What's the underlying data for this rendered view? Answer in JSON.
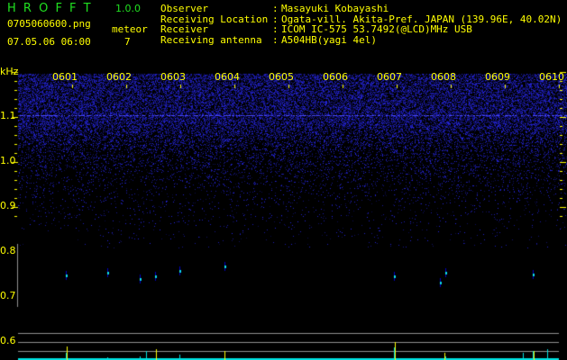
{
  "app": {
    "name": "H R O F F T",
    "version": "1.0.0"
  },
  "file": {
    "name": "0705060600.png",
    "datetime": "07.05.06 06:00"
  },
  "meteor": {
    "label": "meteor",
    "count": "7"
  },
  "info": [
    {
      "label": "Observer",
      "value": "Masayuki Kobayashi"
    },
    {
      "label": "Receiving Location",
      "value": "Ogata-vill. Akita-Pref. JAPAN (139.96E, 40.02N)"
    },
    {
      "label": "Receiver",
      "value": "ICOM IC-575 53.7492(@LCD)MHz USB"
    },
    {
      "label": "Receiving antenna",
      "value": "A504HB(yagi 4el)"
    }
  ],
  "axis": {
    "unit": "kHz",
    "y_ticks": [
      "1.1",
      "1.0",
      "0.9",
      "0.8",
      "0.7",
      "0.6"
    ],
    "x_ticks": [
      "0601",
      "0602",
      "0603",
      "0604",
      "0605",
      "0606",
      "0607",
      "0608",
      "0609",
      "0610"
    ]
  },
  "colors": {
    "text": "#ffff00",
    "logo": "#20e020",
    "noise": "#2020c0",
    "baseline": "#00e0e0",
    "grid": "#909090"
  }
}
